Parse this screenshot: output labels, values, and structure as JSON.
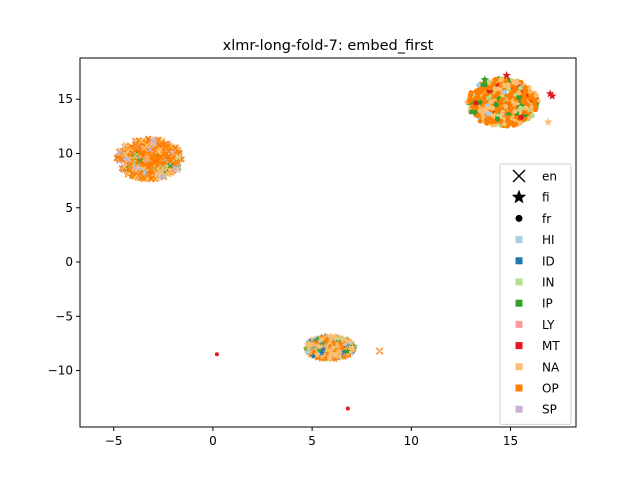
{
  "chart_data": {
    "type": "scatter",
    "title": "xlmr-long-fold-7: embed_first",
    "xlabel": "",
    "ylabel": "",
    "xlim": [
      -6.7,
      18.3
    ],
    "ylim": [
      -15.2,
      18.8
    ],
    "xticks": [
      -5,
      0,
      5,
      10,
      15
    ],
    "xtick_labels": [
      "−5",
      "0",
      "5",
      "10",
      "15"
    ],
    "yticks": [
      -10,
      -5,
      0,
      5,
      10,
      15
    ],
    "ytick_labels": [
      "−10",
      "−5",
      "0",
      "5",
      "10",
      "15"
    ],
    "grid": false,
    "legend_position": "right",
    "legend": {
      "markers": [
        {
          "label": "en",
          "marker": "x"
        },
        {
          "label": "fi",
          "marker": "star"
        },
        {
          "label": "fr",
          "marker": "circle"
        }
      ],
      "classes": [
        {
          "label": "HI",
          "color": "#a6cee3"
        },
        {
          "label": "ID",
          "color": "#1f78b4"
        },
        {
          "label": "IN",
          "color": "#b2df8a"
        },
        {
          "label": "IP",
          "color": "#33a02c"
        },
        {
          "label": "LY",
          "color": "#fb9a99"
        },
        {
          "label": "MT",
          "color": "#e31a1c"
        },
        {
          "label": "NA",
          "color": "#fdbf6f"
        },
        {
          "label": "OP",
          "color": "#ff7f00"
        },
        {
          "label": "SP",
          "color": "#cab2d6"
        }
      ]
    },
    "clusters": [
      {
        "name": "left",
        "center": [
          -3.2,
          9.5
        ],
        "radius": [
          1.65,
          1.9
        ],
        "marker": "x",
        "mix": {
          "OP": 0.55,
          "NA": 0.25,
          "SP": 0.12,
          "IN": 0.04,
          "IP": 0.02,
          "HI": 0.02
        }
      },
      {
        "name": "upper-right",
        "center": [
          14.6,
          14.7
        ],
        "radius": [
          1.8,
          2.2
        ],
        "marker": "circle",
        "mix": {
          "OP": 0.5,
          "NA": 0.3,
          "IN": 0.08,
          "IP": 0.06,
          "MT": 0.03,
          "HI": 0.03
        }
      },
      {
        "name": "bottom-center",
        "center": [
          5.9,
          -7.9
        ],
        "radius": [
          1.25,
          1.1
        ],
        "marker": "star",
        "mix": {
          "NA": 0.45,
          "OP": 0.25,
          "ID": 0.12,
          "HI": 0.08,
          "IN": 0.05,
          "IP": 0.05
        }
      }
    ],
    "points": [
      {
        "x": 17.0,
        "y": 15.5,
        "class": "MT",
        "marker": "star"
      },
      {
        "x": 17.1,
        "y": 15.3,
        "class": "MT",
        "marker": "star"
      },
      {
        "x": 16.9,
        "y": 12.9,
        "class": "NA",
        "marker": "star"
      },
      {
        "x": 14.8,
        "y": 17.2,
        "class": "MT",
        "marker": "star"
      },
      {
        "x": 13.7,
        "y": 16.8,
        "class": "IP",
        "marker": "star"
      },
      {
        "x": 8.4,
        "y": -8.2,
        "class": "OP",
        "marker": "x"
      },
      {
        "x": 8.4,
        "y": -8.2,
        "class": "NA",
        "marker": "circle"
      },
      {
        "x": 0.2,
        "y": -8.5,
        "class": "MT",
        "marker": "circle"
      },
      {
        "x": 6.8,
        "y": -13.5,
        "class": "MT",
        "marker": "circle"
      }
    ]
  }
}
